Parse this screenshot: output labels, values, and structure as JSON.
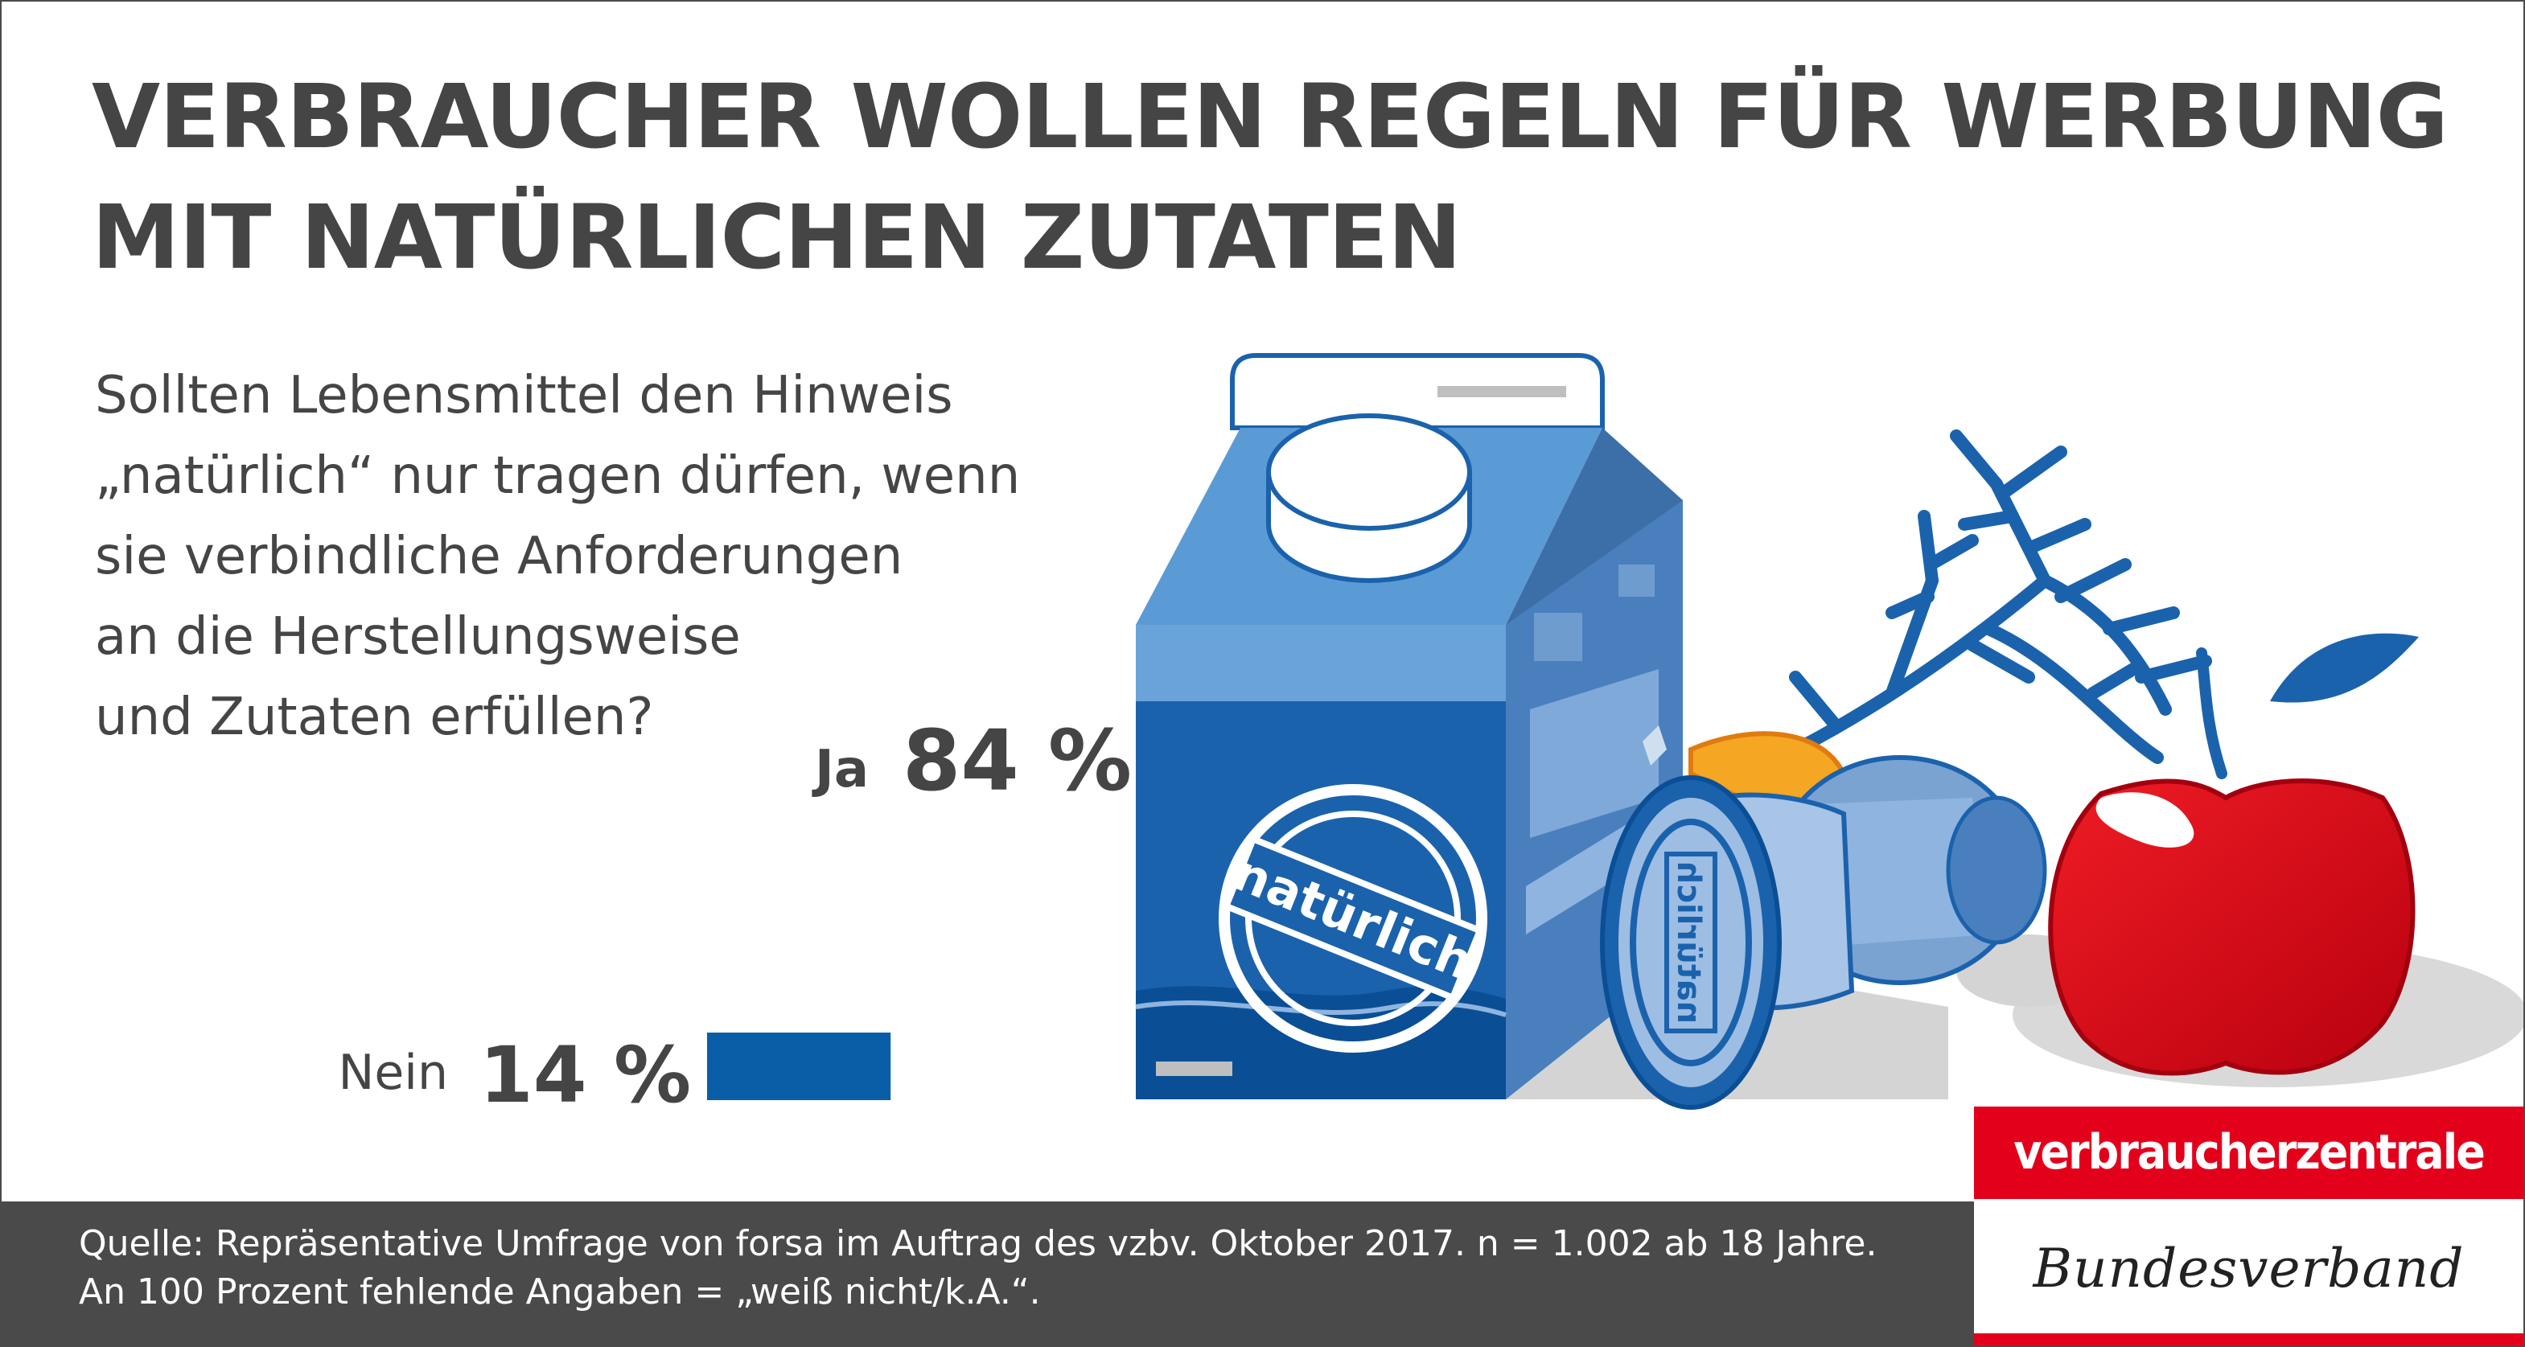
{
  "title_lines": [
    "VERBRAUCHER WOLLEN REGELN FÜR WERBUNG",
    "MIT NATÜRLICHEN ZUTATEN"
  ],
  "question_lines": [
    "Sollten Lebensmittel den Hinweis",
    "„natürlich“ nur tragen dürfen, wenn",
    "sie verbindliche Anforderungen",
    "an die Herstellungsweise",
    "und Zutaten erfüllen?"
  ],
  "chart_data": {
    "type": "bar",
    "orientation": "horizontal",
    "categories": [
      "Ja",
      "Nein"
    ],
    "values": [
      84,
      14
    ],
    "value_labels": [
      "84 %",
      "14 %"
    ],
    "unit": "%",
    "xlim": [
      0,
      100
    ],
    "bar_color": "#0a5ea8"
  },
  "illustration": {
    "carton_label": "natürlich",
    "stamp_label": "natürlich"
  },
  "source_lines": [
    "Quelle: Repräsentative Umfrage von forsa im Auftrag des vzbv. Oktober 2017. n = 1.002 ab 18 Jahre.",
    "An 100 Prozent fehlende Angaben = „weiß nicht/k.A.“."
  ],
  "logo": {
    "top_text": "verbraucherzentrale",
    "bottom_text": "Bundesverband",
    "red": "#e3001b"
  },
  "colors": {
    "title_gray": "#454545",
    "footer_gray": "#4a4a4a",
    "blue": "#0a5ea8"
  }
}
